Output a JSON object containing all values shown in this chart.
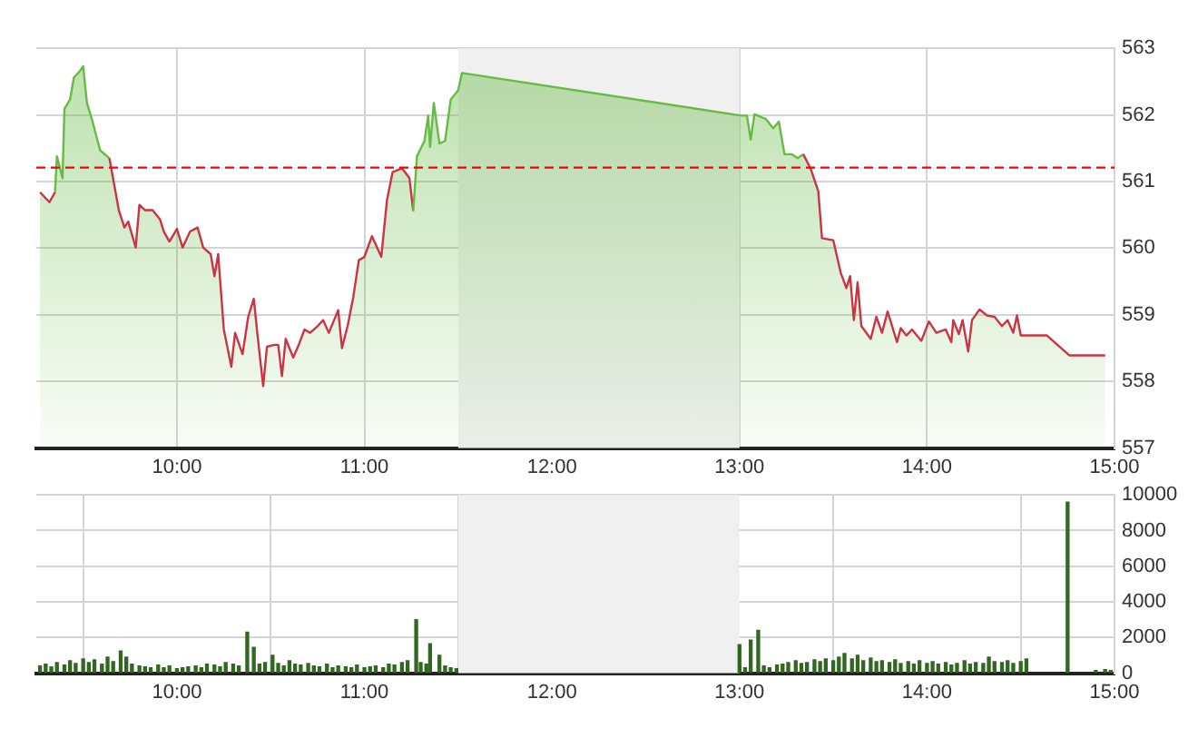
{
  "chart_data": [
    {
      "type": "area",
      "x": [
        9.27,
        9.32,
        9.35,
        9.36,
        9.39,
        9.4,
        9.43,
        9.45,
        9.48,
        9.5,
        9.52,
        9.55,
        9.59,
        9.64,
        9.69,
        9.72,
        9.74,
        9.78,
        9.8,
        9.83,
        9.87,
        9.91,
        9.93,
        9.96,
        10.0,
        10.03,
        10.07,
        10.11,
        10.14,
        10.18,
        10.2,
        10.22,
        10.25,
        10.29,
        10.31,
        10.35,
        10.38,
        10.41,
        10.43,
        10.46,
        10.48,
        10.52,
        10.54,
        10.56,
        10.58,
        10.62,
        10.65,
        10.68,
        10.71,
        10.75,
        10.78,
        10.81,
        10.86,
        10.88,
        10.91,
        10.94,
        10.97,
        11.0,
        11.04,
        11.09,
        11.12,
        11.15,
        11.2,
        11.24,
        11.26,
        11.28,
        11.32,
        11.34,
        11.35,
        11.37,
        11.4,
        11.43,
        11.46,
        11.5,
        11.52,
        13.01,
        13.04,
        13.06,
        13.08,
        13.14,
        13.18,
        13.21,
        13.24,
        13.28,
        13.31,
        13.34,
        13.38,
        13.42,
        13.44,
        13.5,
        13.54,
        13.57,
        13.59,
        13.61,
        13.63,
        13.65,
        13.7,
        13.73,
        13.76,
        13.79,
        13.84,
        13.86,
        13.89,
        13.92,
        13.97,
        14.01,
        14.05,
        14.1,
        14.13,
        14.14,
        14.17,
        14.19,
        14.22,
        14.24,
        14.28,
        14.32,
        14.36,
        14.4,
        14.43,
        14.46,
        14.48,
        14.5,
        14.64,
        14.76,
        14.95
      ],
      "series": [
        {
          "color": "#66bb44",
          "values": [
            560.84,
            560.69,
            560.84,
            561.38,
            561.05,
            562.09,
            562.23,
            562.56,
            562.65,
            562.73,
            562.18,
            561.9,
            561.47,
            561.35,
            560.57,
            560.31,
            560.4,
            560.01,
            560.65,
            560.57,
            560.57,
            560.43,
            560.25,
            560.1,
            560.29,
            560.01,
            560.25,
            560.31,
            560.01,
            559.91,
            559.58,
            559.91,
            558.78,
            558.22,
            558.73,
            558.41,
            558.97,
            559.24,
            558.69,
            557.93,
            558.52,
            558.55,
            558.55,
            558.08,
            558.64,
            558.36,
            558.55,
            558.78,
            558.73,
            558.83,
            558.92,
            558.73,
            559.07,
            558.5,
            558.83,
            559.26,
            559.82,
            559.87,
            560.18,
            559.87,
            560.72,
            561.14,
            561.2,
            561.05,
            560.56,
            561.38,
            561.61,
            561.99,
            561.52,
            562.18,
            561.57,
            561.61,
            562.23,
            562.37,
            562.63,
            561.99,
            561.99,
            561.63,
            562.01,
            561.94,
            561.8,
            561.9,
            561.41,
            561.41,
            561.35,
            561.41,
            561.19,
            560.86,
            560.15,
            560.12,
            559.63,
            559.4,
            559.58,
            558.92,
            559.49,
            558.83,
            558.64,
            558.97,
            558.73,
            559.05,
            558.59,
            558.8,
            558.69,
            558.78,
            558.61,
            558.9,
            558.73,
            558.78,
            558.59,
            558.92,
            558.71,
            558.92,
            558.45,
            558.92,
            559.08,
            558.99,
            558.97,
            558.83,
            558.92,
            558.73,
            558.99,
            558.69,
            558.69,
            558.39,
            558.39
          ],
          "colors": [
            "#cc3344",
            "#cc3344",
            "#cc3344",
            "#66bb44",
            "#66bb44",
            "#66bb44",
            "#66bb44",
            "#66bb44",
            "#66bb44",
            "#66bb44",
            "#66bb44",
            "#66bb44",
            "#66bb44",
            "#66bb44",
            "#cc3344",
            "#cc3344",
            "#cc3344",
            "#cc3344",
            "#cc3344",
            "#cc3344",
            "#cc3344",
            "#cc3344",
            "#cc3344",
            "#cc3344",
            "#cc3344",
            "#cc3344",
            "#cc3344",
            "#cc3344",
            "#cc3344",
            "#cc3344",
            "#cc3344",
            "#cc3344",
            "#cc3344",
            "#cc3344",
            "#cc3344",
            "#cc3344",
            "#cc3344",
            "#cc3344",
            "#cc3344",
            "#cc3344",
            "#cc3344",
            "#cc3344",
            "#cc3344",
            "#cc3344",
            "#cc3344",
            "#cc3344",
            "#cc3344",
            "#cc3344",
            "#cc3344",
            "#cc3344",
            "#cc3344",
            "#cc3344",
            "#cc3344",
            "#cc3344",
            "#cc3344",
            "#cc3344",
            "#cc3344",
            "#cc3344",
            "#cc3344",
            "#cc3344",
            "#cc3344",
            "#cc3344",
            "#cc3344",
            "#cc3344",
            "#cc3344",
            "#66bb44",
            "#66bb44",
            "#66bb44",
            "#66bb44",
            "#66bb44",
            "#66bb44",
            "#66bb44",
            "#66bb44",
            "#66bb44",
            "#66bb44",
            "#66bb44",
            "#66bb44",
            "#66bb44",
            "#66bb44",
            "#66bb44",
            "#66bb44",
            "#66bb44",
            "#66bb44",
            "#66bb44",
            "#66bb44",
            "#66bb44",
            "#cc3344",
            "#cc3344",
            "#cc3344",
            "#cc3344",
            "#cc3344",
            "#cc3344",
            "#cc3344",
            "#cc3344",
            "#cc3344",
            "#cc3344",
            "#cc3344",
            "#cc3344",
            "#cc3344",
            "#cc3344",
            "#cc3344",
            "#cc3344",
            "#cc3344",
            "#cc3344",
            "#cc3344",
            "#cc3344",
            "#cc3344",
            "#cc3344",
            "#cc3344",
            "#cc3344",
            "#cc3344",
            "#cc3344",
            "#cc3344",
            "#cc3344",
            "#cc3344",
            "#cc3344",
            "#cc3344",
            "#cc3344",
            "#cc3344",
            "#cc3344",
            "#cc3344",
            "#cc3344",
            "#cc3344",
            "#cc3344",
            "#cc3344"
          ]
        }
      ],
      "ref_lines": [
        {
          "axis": "y",
          "value": 561.21,
          "color": "#ff0000",
          "line_style": "dashed"
        }
      ],
      "bands": [
        {
          "axis": "x",
          "from": 11.5,
          "to": 13,
          "color": "#f0f0f0"
        }
      ],
      "xlim": [
        9.25,
        15
      ],
      "xticks": [
        {
          "value": 10,
          "label": "10:00"
        },
        {
          "value": 11,
          "label": "11:00"
        },
        {
          "value": 12,
          "label": "12:00"
        },
        {
          "value": 13,
          "label": "13:00"
        },
        {
          "value": 14,
          "label": "14:00"
        },
        {
          "value": 15,
          "label": "15:00"
        }
      ],
      "ylim": [
        557,
        563
      ],
      "yticks": [
        557,
        558,
        559,
        560,
        561,
        562,
        563
      ],
      "grid": true
    },
    {
      "type": "bar",
      "x": [
        9.27,
        9.3,
        9.33,
        9.36,
        9.4,
        9.43,
        9.46,
        9.5,
        9.53,
        9.56,
        9.6,
        9.63,
        9.66,
        9.7,
        9.73,
        9.76,
        9.8,
        9.83,
        9.86,
        9.9,
        9.93,
        9.96,
        10.0,
        10.03,
        10.06,
        10.1,
        10.13,
        10.16,
        10.2,
        10.23,
        10.26,
        10.3,
        10.33,
        10.375,
        10.41,
        10.44,
        10.47,
        10.51,
        10.54,
        10.57,
        10.6,
        10.63,
        10.66,
        10.7,
        10.73,
        10.76,
        10.8,
        10.83,
        10.86,
        10.9,
        10.93,
        10.96,
        11.0,
        11.03,
        11.06,
        11.1,
        11.13,
        11.16,
        11.2,
        11.23,
        11.276,
        11.3,
        11.33,
        11.35,
        11.4,
        11.43,
        11.46,
        11.49,
        13.0,
        13.03,
        13.06,
        13.1,
        13.13,
        13.16,
        13.2,
        13.23,
        13.26,
        13.3,
        13.33,
        13.36,
        13.4,
        13.43,
        13.46,
        13.5,
        13.53,
        13.56,
        13.6,
        13.63,
        13.66,
        13.7,
        13.73,
        13.76,
        13.8,
        13.83,
        13.86,
        13.9,
        13.93,
        13.96,
        14.0,
        14.03,
        14.06,
        14.1,
        14.13,
        14.16,
        14.2,
        14.23,
        14.26,
        14.3,
        14.33,
        14.36,
        14.4,
        14.43,
        14.46,
        14.5,
        14.53,
        14.75,
        14.9,
        14.95,
        14.98
      ],
      "values": [
        400,
        500,
        350,
        600,
        450,
        700,
        550,
        800,
        600,
        750,
        500,
        900,
        650,
        1250,
        900,
        500,
        400,
        350,
        300,
        450,
        300,
        400,
        250,
        300,
        350,
        400,
        300,
        500,
        450,
        350,
        600,
        500,
        400,
        2300,
        1450,
        500,
        600,
        1000,
        550,
        400,
        700,
        500,
        450,
        550,
        400,
        350,
        500,
        300,
        400,
        350,
        300,
        450,
        300,
        350,
        400,
        300,
        500,
        450,
        600,
        700,
        3000,
        600,
        500,
        1650,
        1000,
        400,
        300,
        250,
        1600,
        300,
        1850,
        2400,
        400,
        300,
        450,
        500,
        600,
        700,
        550,
        600,
        750,
        650,
        800,
        700,
        900,
        1100,
        800,
        1000,
        700,
        850,
        650,
        700,
        600,
        750,
        550,
        650,
        500,
        700,
        550,
        650,
        500,
        600,
        450,
        550,
        700,
        500,
        600,
        550,
        900,
        650,
        600,
        700,
        550,
        650,
        800,
        9600,
        150,
        200,
        150
      ],
      "color": "#336622",
      "bands": [
        {
          "axis": "x",
          "from": 11.5,
          "to": 13,
          "color": "#f0f0f0"
        }
      ],
      "xlim": [
        9.25,
        15
      ],
      "xticks": [
        {
          "value": 10,
          "label": "10:00"
        },
        {
          "value": 11,
          "label": "11:00"
        },
        {
          "value": 12,
          "label": "12:00"
        },
        {
          "value": 13,
          "label": "13:00"
        },
        {
          "value": 14,
          "label": "14:00"
        },
        {
          "value": 15,
          "label": "15:00"
        }
      ],
      "ylim": [
        0,
        10000
      ],
      "yticks": [
        0,
        2000,
        4000,
        6000,
        8000,
        10000
      ],
      "grid": true
    }
  ]
}
